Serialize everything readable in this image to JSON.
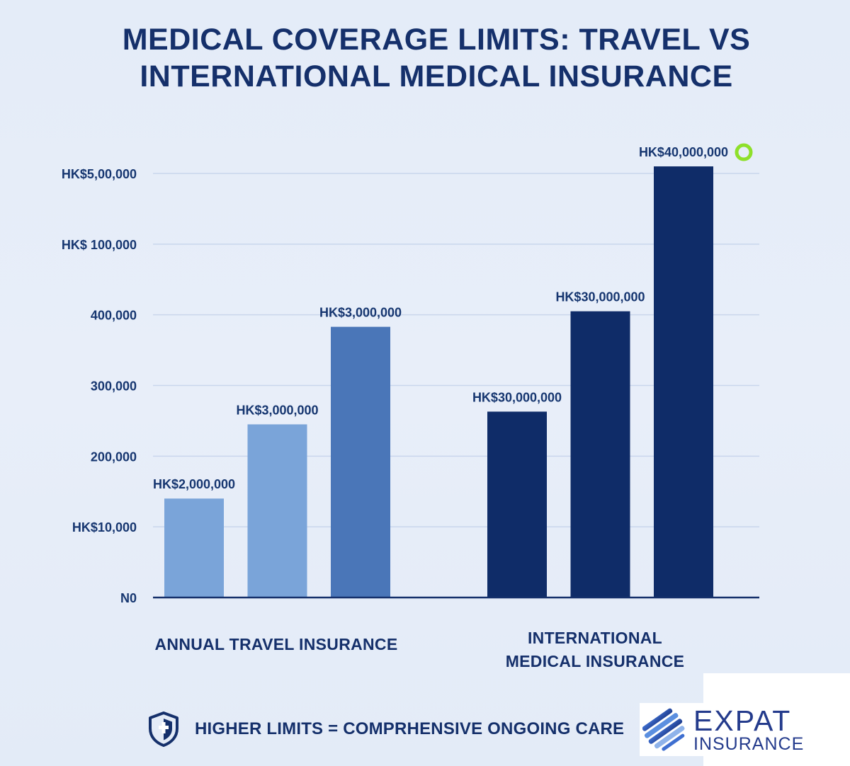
{
  "title_lines": [
    "MEDICAL COVERAGE LIMITS: TRAVEL VS",
    "INTERNATIONAL MEDICAL INSURANCE"
  ],
  "chart_data": {
    "type": "bar",
    "title": "MEDICAL COVERAGE LIMITS: TRAVEL VS INTERNATIONAL MEDICAL INSURANCE",
    "y_tick_labels": [
      "N0",
      "HK$10,000",
      "200,000",
      "300,000",
      "400,000",
      "HK$ 100,000",
      "HK$5,00,000"
    ],
    "y_tick_levels": [
      0,
      1,
      2,
      3,
      4,
      5,
      6
    ],
    "ylim": [
      0,
      6
    ],
    "grid": true,
    "bar_value_note": "bar heights are read as positions on the printed tick scale (0-6), since the tick labels are not linear",
    "groups": [
      {
        "category": "ANNUAL TRAVEL INSURANCE",
        "category_lines": [
          "ANNUAL TRAVEL INSURANCE"
        ],
        "bars": [
          {
            "label": "HK$2,000,000",
            "value": 1.4,
            "color": "#7aa4d9"
          },
          {
            "label": "HK$3,000,000",
            "value": 2.45,
            "color": "#7aa4d9"
          },
          {
            "label": "HK$3,000,000",
            "value": 3.83,
            "color": "#4a76b8"
          }
        ]
      },
      {
        "category": "INTERNATIONAL MEDICAL INSURANCE",
        "category_lines": [
          "INTERNATIONAL",
          "MEDICAL INSURANCE"
        ],
        "bars": [
          {
            "label": "HK$30,000,000",
            "value": 2.63,
            "color": "#0f2c68"
          },
          {
            "label": "HK$30,000,000",
            "value": 4.05,
            "color": "#0f2c68"
          },
          {
            "label": "HK$40,000,000",
            "value": 6.1,
            "color": "#0f2c68"
          }
        ]
      }
    ]
  },
  "marker_color": "#8ee02a",
  "footer": {
    "icon": "shield-plus-icon",
    "text": "HIGHER LIMITS = COMPRHENSIVE ONGOING CARE"
  },
  "logo": {
    "line1": "EXPAT",
    "line2": "INSURANCE",
    "color": "#243b8c"
  }
}
